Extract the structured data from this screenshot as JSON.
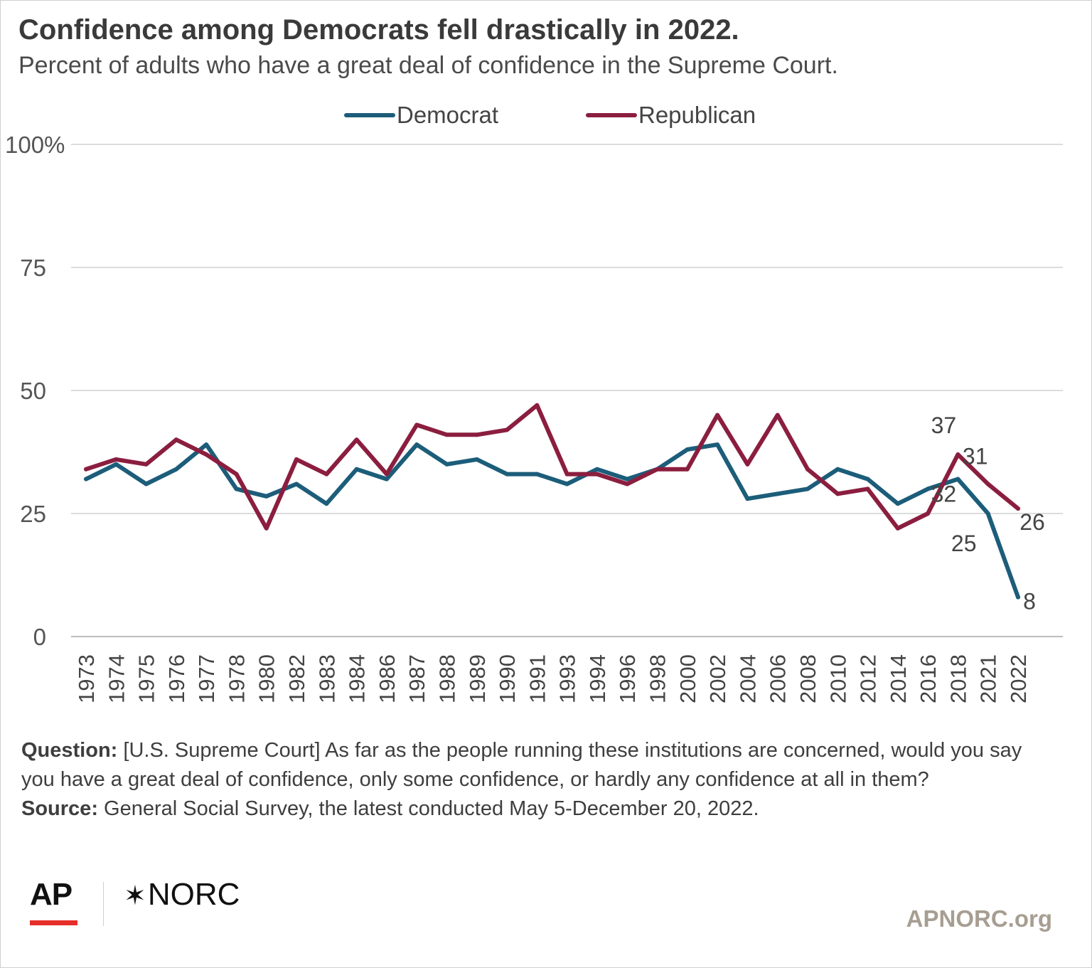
{
  "header": {
    "title": "Confidence among Democrats fell drastically in 2022.",
    "subtitle": "Percent of adults who have a great deal of confidence in the Supreme Court."
  },
  "chart_data": {
    "type": "line",
    "categories": [
      "1973",
      "1974",
      "1975",
      "1976",
      "1977",
      "1978",
      "1980",
      "1982",
      "1983",
      "1984",
      "1986",
      "1987",
      "1988",
      "1989",
      "1990",
      "1991",
      "1993",
      "1994",
      "1996",
      "1998",
      "2000",
      "2002",
      "2004",
      "2006",
      "2008",
      "2010",
      "2012",
      "2014",
      "2016",
      "2018",
      "2021",
      "2022"
    ],
    "series": [
      {
        "name": "Democrat",
        "color": "#1c5d7a",
        "values": [
          32,
          35,
          31,
          34,
          39,
          30,
          28.5,
          31,
          27,
          34,
          32,
          39,
          35,
          36,
          33,
          33,
          31,
          34,
          32,
          34,
          38,
          39,
          28,
          29,
          30,
          34,
          32,
          27,
          30,
          32,
          25,
          8
        ],
        "labels": [
          {
            "index": 29,
            "text": "32"
          },
          {
            "index": 30,
            "text": "25"
          },
          {
            "index": 31,
            "text": "8"
          }
        ]
      },
      {
        "name": "Republican",
        "color": "#8b1e3f",
        "values": [
          34,
          36,
          35,
          40,
          37,
          33,
          22,
          36,
          33,
          40,
          33,
          43,
          41,
          41,
          42,
          47,
          33,
          33,
          31,
          34,
          34,
          45,
          35,
          45,
          34,
          29,
          30,
          22,
          25,
          37,
          31,
          26
        ],
        "labels": [
          {
            "index": 29,
            "text": "37"
          },
          {
            "index": 30,
            "text": "31"
          },
          {
            "index": 31,
            "text": "26"
          }
        ]
      }
    ],
    "yticks": [
      {
        "value": 0,
        "label": "0"
      },
      {
        "value": 25,
        "label": "25"
      },
      {
        "value": 50,
        "label": "50"
      },
      {
        "value": 75,
        "label": "75"
      },
      {
        "value": 100,
        "label": "100%"
      }
    ],
    "ylim": [
      0,
      100
    ],
    "grid": true,
    "legend_position": "top-center"
  },
  "footer": {
    "question_label": "Question:",
    "question_text": " [U.S. Supreme Court] As far as the people running these institutions are concerned, would you say you have a great deal of confidence, only some confidence, or hardly any confidence at all in them?",
    "source_label": "Source:",
    "source_text": " General Social Survey, the latest conducted May 5-December 20, 2022.",
    "logo_ap": "AP",
    "logo_norc": "NORC",
    "site": "APNORC.org"
  }
}
